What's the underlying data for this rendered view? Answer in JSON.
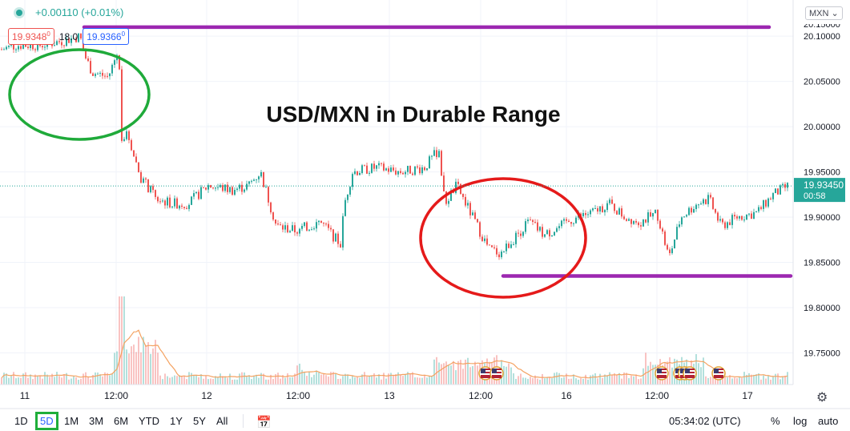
{
  "header": {
    "change": "+0.00110 (+0.01%)",
    "sell_price": "19.9348",
    "sell_sup": "0",
    "spread": "18.0",
    "buy_price": "19.9366",
    "buy_sup": "0",
    "currency": "MXN"
  },
  "toolbar": {
    "timeframes": [
      "1D",
      "5D",
      "1M",
      "3M",
      "6M",
      "YTD",
      "1Y",
      "5Y",
      "All"
    ],
    "active_timeframe": "5D",
    "clock": "05:34:02 (UTC)",
    "percent": "%",
    "log": "log",
    "auto": "auto"
  },
  "chart_data": {
    "type": "candlestick",
    "title": "USD/MXN in Durable Range",
    "ylim": [
      19.715,
      20.14
    ],
    "y_ticks": [
      19.75,
      19.8,
      19.85,
      19.9,
      19.95,
      20.0,
      20.05,
      20.1
    ],
    "y_tick_labels": [
      "19.75000",
      "19.80000",
      "19.85000",
      "19.90000",
      "19.95000",
      "20.00000",
      "20.05000",
      "20.10000"
    ],
    "x_labels": [
      "11",
      "12:00",
      "12",
      "12:00",
      "13",
      "12:00",
      "16",
      "12:00",
      "17"
    ],
    "last_price": "19.93450",
    "countdown": "00:58",
    "price_path": [
      [
        0,
        20.085
      ],
      [
        20,
        20.09
      ],
      [
        50,
        20.09
      ],
      [
        80,
        20.095
      ],
      [
        100,
        20.1
      ],
      [
        105,
        20.08
      ],
      [
        115,
        20.06
      ],
      [
        135,
        20.055
      ],
      [
        148,
        20.085
      ],
      [
        152,
        19.99
      ],
      [
        160,
        19.99
      ],
      [
        175,
        19.945
      ],
      [
        195,
        19.92
      ],
      [
        215,
        19.915
      ],
      [
        235,
        19.915
      ],
      [
        260,
        19.935
      ],
      [
        290,
        19.93
      ],
      [
        310,
        19.935
      ],
      [
        325,
        19.95
      ],
      [
        335,
        19.92
      ],
      [
        345,
        19.89
      ],
      [
        370,
        19.885
      ],
      [
        400,
        19.895
      ],
      [
        425,
        19.87
      ],
      [
        430,
        19.915
      ],
      [
        440,
        19.95
      ],
      [
        470,
        19.955
      ],
      [
        500,
        19.95
      ],
      [
        530,
        19.955
      ],
      [
        548,
        19.975
      ],
      [
        555,
        19.915
      ],
      [
        570,
        19.935
      ],
      [
        590,
        19.9
      ],
      [
        610,
        19.865
      ],
      [
        625,
        19.86
      ],
      [
        640,
        19.875
      ],
      [
        660,
        19.895
      ],
      [
        680,
        19.88
      ],
      [
        700,
        19.89
      ],
      [
        720,
        19.9
      ],
      [
        740,
        19.905
      ],
      [
        760,
        19.915
      ],
      [
        780,
        19.9
      ],
      [
        800,
        19.895
      ],
      [
        820,
        19.905
      ],
      [
        835,
        19.855
      ],
      [
        850,
        19.9
      ],
      [
        870,
        19.915
      ],
      [
        885,
        19.92
      ],
      [
        900,
        19.89
      ],
      [
        920,
        19.9
      ],
      [
        945,
        19.905
      ],
      [
        965,
        19.925
      ],
      [
        985,
        19.935
      ]
    ],
    "horizontal_levels": [
      {
        "y": 20.11,
        "x_start": 105,
        "x_end": 960
      },
      {
        "y": 19.835,
        "x_start": 628,
        "x_end": 987
      }
    ],
    "colors": {
      "up": "#26a69a",
      "down": "#ef5350",
      "level_line": "#9c27b0",
      "ellipse_left": "#1faa3a",
      "ellipse_right": "#e51a1a",
      "volume_ma": "#f4a261"
    }
  }
}
